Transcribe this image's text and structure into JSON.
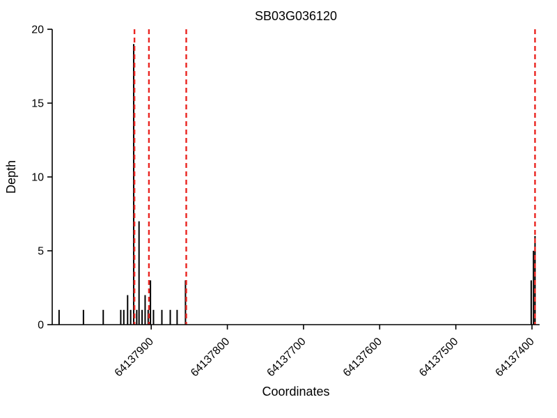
{
  "chart_data": {
    "type": "bar",
    "title": "SB03G036120",
    "xlabel": "Coordinates",
    "ylabel": "Depth",
    "ylim": [
      0,
      20
    ],
    "yticks": [
      0,
      5,
      10,
      15,
      20
    ],
    "x_axis_reversed": true,
    "xlim": [
      64138030,
      64137390
    ],
    "xticks": [
      64137900,
      64137800,
      64137700,
      64137600,
      64137500,
      64137400
    ],
    "bars": [
      {
        "coord": 64138021,
        "depth": 1
      },
      {
        "coord": 64137989,
        "depth": 1
      },
      {
        "coord": 64137963,
        "depth": 1
      },
      {
        "coord": 64137940,
        "depth": 1
      },
      {
        "coord": 64137936,
        "depth": 1
      },
      {
        "coord": 64137931,
        "depth": 2
      },
      {
        "coord": 64137927,
        "depth": 1
      },
      {
        "coord": 64137923,
        "depth": 19
      },
      {
        "coord": 64137919,
        "depth": 1
      },
      {
        "coord": 64137916,
        "depth": 7
      },
      {
        "coord": 64137912,
        "depth": 1
      },
      {
        "coord": 64137908,
        "depth": 2
      },
      {
        "coord": 64137904,
        "depth": 1
      },
      {
        "coord": 64137901,
        "depth": 3
      },
      {
        "coord": 64137897,
        "depth": 1
      },
      {
        "coord": 64137886,
        "depth": 1
      },
      {
        "coord": 64137875,
        "depth": 1
      },
      {
        "coord": 64137866,
        "depth": 1
      },
      {
        "coord": 64137855,
        "depth": 3
      },
      {
        "coord": 64137401,
        "depth": 3
      },
      {
        "coord": 64137398,
        "depth": 5
      },
      {
        "coord": 64137396,
        "depth": 6
      }
    ],
    "marker_lines": [
      64137922,
      64137903,
      64137854,
      64137396
    ],
    "legend": null,
    "grid": false,
    "colors": {
      "bar": "#000000",
      "marker_line": "#ea2420",
      "axis": "#000000",
      "background": "#ffffff"
    }
  }
}
